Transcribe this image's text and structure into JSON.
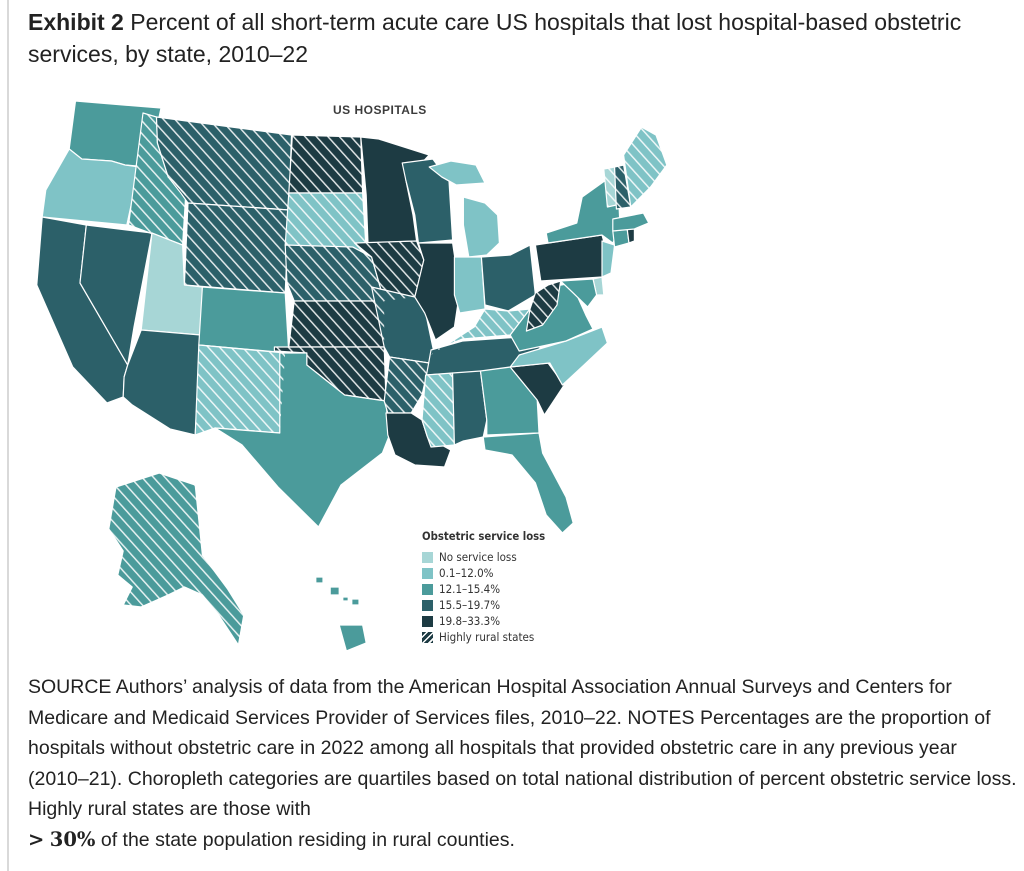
{
  "header": {
    "exhibit_label": "Exhibit 2",
    "title": "Percent of all short-term acute care US hospitals that lost hospital-based obstetric services, by state, 2010–22"
  },
  "map": {
    "subtitle": "US HOSPITALS",
    "region": "United States",
    "colors": {
      "none": "#a7d6d6",
      "q1": "#7fc3c6",
      "q2": "#4b9b9b",
      "q3": "#2c6069",
      "q4": "#1d3b43",
      "hatch": "#ffffff",
      "border": "#ffffff"
    },
    "states": [
      {
        "code": "WA",
        "category": "q2",
        "rural": false
      },
      {
        "code": "OR",
        "category": "q1",
        "rural": false
      },
      {
        "code": "CA",
        "category": "q3",
        "rural": false
      },
      {
        "code": "NV",
        "category": "q3",
        "rural": false
      },
      {
        "code": "ID",
        "category": "q2",
        "rural": true
      },
      {
        "code": "MT",
        "category": "q3",
        "rural": true
      },
      {
        "code": "WY",
        "category": "q3",
        "rural": true
      },
      {
        "code": "UT",
        "category": "none",
        "rural": false
      },
      {
        "code": "AZ",
        "category": "q3",
        "rural": false
      },
      {
        "code": "CO",
        "category": "q2",
        "rural": false
      },
      {
        "code": "NM",
        "category": "q1",
        "rural": true
      },
      {
        "code": "ND",
        "category": "q4",
        "rural": true
      },
      {
        "code": "SD",
        "category": "q1",
        "rural": true
      },
      {
        "code": "NE",
        "category": "q3",
        "rural": true
      },
      {
        "code": "KS",
        "category": "q4",
        "rural": true
      },
      {
        "code": "OK",
        "category": "q4",
        "rural": true
      },
      {
        "code": "TX",
        "category": "q2",
        "rural": false
      },
      {
        "code": "MN",
        "category": "q4",
        "rural": false
      },
      {
        "code": "IA",
        "category": "q4",
        "rural": true
      },
      {
        "code": "MO",
        "category": "q3",
        "rural": false
      },
      {
        "code": "AR",
        "category": "q3",
        "rural": true
      },
      {
        "code": "LA",
        "category": "q4",
        "rural": false
      },
      {
        "code": "WI",
        "category": "q3",
        "rural": false
      },
      {
        "code": "IL",
        "category": "q4",
        "rural": false
      },
      {
        "code": "MI",
        "category": "q1",
        "rural": false
      },
      {
        "code": "IN",
        "category": "q1",
        "rural": false
      },
      {
        "code": "OH",
        "category": "q3",
        "rural": false
      },
      {
        "code": "KY",
        "category": "q1",
        "rural": true
      },
      {
        "code": "TN",
        "category": "q3",
        "rural": false
      },
      {
        "code": "MS",
        "category": "q1",
        "rural": true
      },
      {
        "code": "AL",
        "category": "q3",
        "rural": false
      },
      {
        "code": "GA",
        "category": "q2",
        "rural": false
      },
      {
        "code": "FL",
        "category": "q2",
        "rural": false
      },
      {
        "code": "SC",
        "category": "q4",
        "rural": false
      },
      {
        "code": "NC",
        "category": "q1",
        "rural": false
      },
      {
        "code": "VA",
        "category": "q2",
        "rural": false
      },
      {
        "code": "WV",
        "category": "q4",
        "rural": true
      },
      {
        "code": "PA",
        "category": "q4",
        "rural": false
      },
      {
        "code": "NY",
        "category": "q2",
        "rural": false
      },
      {
        "code": "NJ",
        "category": "q1",
        "rural": false
      },
      {
        "code": "DE",
        "category": "none",
        "rural": false
      },
      {
        "code": "MD",
        "category": "q2",
        "rural": false
      },
      {
        "code": "CT",
        "category": "q2",
        "rural": false
      },
      {
        "code": "RI",
        "category": "q4",
        "rural": false
      },
      {
        "code": "MA",
        "category": "q2",
        "rural": false
      },
      {
        "code": "VT",
        "category": "none",
        "rural": true
      },
      {
        "code": "NH",
        "category": "q3",
        "rural": true
      },
      {
        "code": "ME",
        "category": "q1",
        "rural": true
      },
      {
        "code": "AK",
        "category": "q2",
        "rural": true
      },
      {
        "code": "HI",
        "category": "q2",
        "rural": false
      }
    ]
  },
  "legend": {
    "title": "Obstetric service loss",
    "items": [
      {
        "label": "No service loss",
        "category": "none"
      },
      {
        "label": "0.1–12.0%",
        "category": "q1"
      },
      {
        "label": "12.1–15.4%",
        "category": "q2"
      },
      {
        "label": "15.5–19.7%",
        "category": "q3"
      },
      {
        "label": "19.8–33.3%",
        "category": "q4"
      },
      {
        "label": "Highly rural states",
        "category": "hatch-sample"
      }
    ]
  },
  "source": {
    "text": "SOURCE Authors’ analysis of data from the American Hospital Association Annual Surveys and Centers for Medicare and Medicaid Services Provider of Services files, 2010–22. NOTES Percentages are the proportion of hospitals without obstetric care in 2022 among all hospitals that provided obstetric care in any previous year (2010–21). Choropleth categories are quartiles based on total national distribution of percent obstetric service loss. Highly rural states are those with",
    "threshold_symbol": ">",
    "threshold_value": "30%",
    "tail": "of the state population residing in rural counties."
  }
}
